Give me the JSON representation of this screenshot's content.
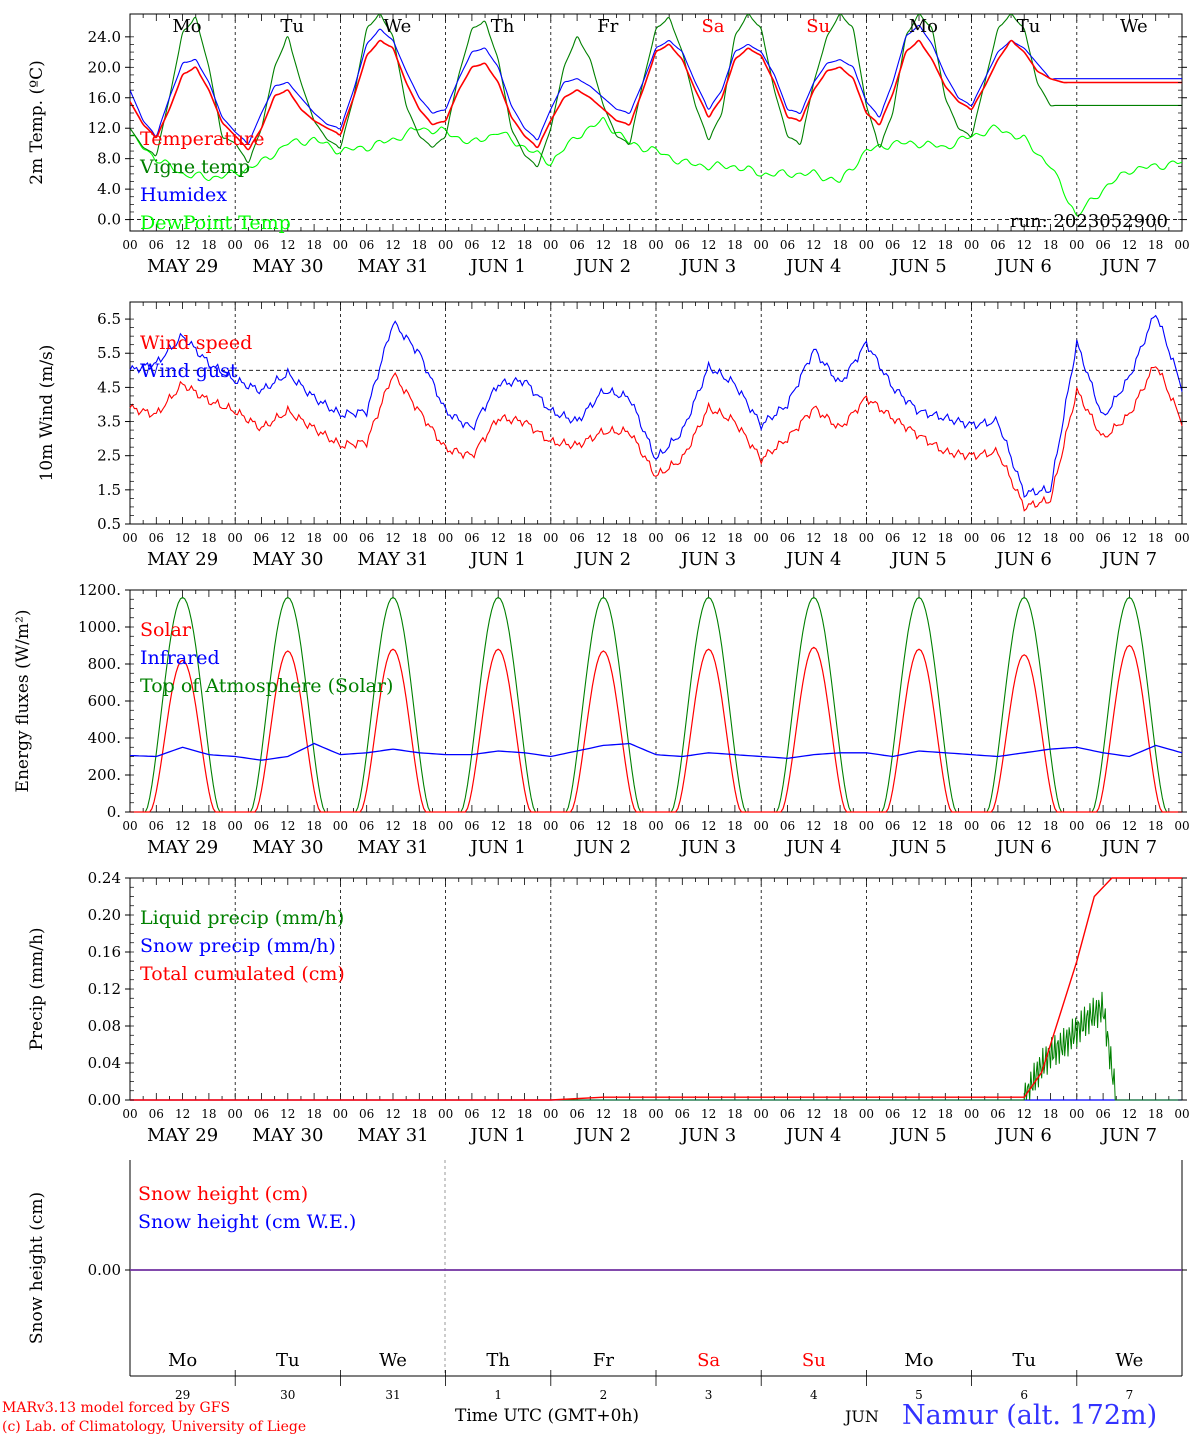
{
  "chart_data": [
    {
      "id": "temperature",
      "type": "line",
      "ylabel": "2m Temp. (ºC)",
      "ylim": [
        -1.5,
        27
      ],
      "yticks": [
        "0.0",
        "4.0",
        "8.0",
        "12.0",
        "16.0",
        "20.0",
        "24.0"
      ],
      "ytick_values": [
        0,
        4,
        8,
        12,
        16,
        20,
        24
      ],
      "ref_line": 0,
      "annotation": "run: 2023052900",
      "x_unit": "hours since MAY 29 00 UTC",
      "series": [
        {
          "name": "Temperature",
          "color": "#ff0000",
          "x": [
            0,
            3,
            6,
            9,
            12,
            15,
            18,
            21,
            24,
            27,
            30,
            33,
            36,
            39,
            42,
            45,
            48,
            51,
            54,
            57,
            60,
            63,
            66,
            69,
            72,
            75,
            78,
            81,
            84,
            87,
            90,
            93,
            96,
            99,
            102,
            105,
            108,
            111,
            114,
            117,
            120,
            123,
            126,
            129,
            132,
            135,
            138,
            141,
            144,
            147,
            150,
            153,
            156,
            159,
            162,
            165,
            168,
            171,
            174,
            177,
            180,
            183,
            186,
            189,
            192,
            195,
            198,
            201,
            204,
            207,
            210,
            213,
            216,
            219,
            222,
            225,
            228,
            231,
            234,
            237,
            240
          ],
          "values": [
            15.5,
            12.5,
            10.8,
            14.5,
            19.0,
            20.0,
            17.0,
            12.8,
            11.0,
            9.2,
            12.0,
            16.2,
            17.0,
            14.5,
            13.0,
            12.0,
            11.2,
            16.0,
            21.5,
            23.5,
            22.5,
            18.0,
            14.5,
            12.5,
            13.0,
            17.0,
            20.0,
            20.5,
            18.0,
            13.5,
            11.0,
            9.5,
            13.0,
            16.0,
            17.0,
            16.0,
            14.5,
            13.0,
            12.5,
            17.0,
            22.0,
            23.0,
            21.0,
            17.0,
            13.5,
            16.0,
            21.0,
            22.5,
            21.5,
            18.0,
            13.5,
            13.0,
            17.0,
            19.5,
            20.0,
            18.5,
            14.0,
            12.5,
            16.5,
            22.0,
            23.5,
            21.0,
            17.5,
            15.5,
            14.5,
            17.5,
            21.0,
            23.5,
            22.0,
            19.5,
            18.5,
            18.0,
            18.0,
            18.0,
            18.0,
            18.0,
            18.0,
            18.0,
            18.0,
            18.0,
            18.0
          ]
        },
        {
          "name": "Vigne temp",
          "color": "#008000",
          "x": [
            0,
            3,
            6,
            9,
            12,
            15,
            18,
            21,
            24,
            27,
            30,
            33,
            36,
            39,
            42,
            45,
            48,
            51,
            54,
            57,
            60,
            63,
            66,
            69,
            72,
            75,
            78,
            81,
            84,
            87,
            90,
            93,
            96,
            99,
            102,
            105,
            108,
            111,
            114,
            117,
            120,
            123,
            126,
            129,
            132,
            135,
            138,
            141,
            144,
            147,
            150,
            153,
            156,
            159,
            162,
            165,
            168,
            171,
            174,
            177,
            180,
            183,
            186,
            189,
            192,
            195,
            198,
            201,
            204,
            207,
            210,
            213,
            216,
            219,
            222,
            225,
            228,
            231,
            234,
            237,
            240
          ],
          "values": [
            12.0,
            9.5,
            8.5,
            16.0,
            24.5,
            26.5,
            20.0,
            11.0,
            10.0,
            7.5,
            12.0,
            20.0,
            24.0,
            18.0,
            13.0,
            10.5,
            9.5,
            16.0,
            25.0,
            27.0,
            24.0,
            15.0,
            11.0,
            9.5,
            11.0,
            19.0,
            25.0,
            26.0,
            21.0,
            12.0,
            8.5,
            7.0,
            12.0,
            20.0,
            24.0,
            21.0,
            15.0,
            11.0,
            10.0,
            18.0,
            25.0,
            26.5,
            22.0,
            15.0,
            10.5,
            14.0,
            24.0,
            27.0,
            25.0,
            17.0,
            11.0,
            10.0,
            18.0,
            24.0,
            27.0,
            25.0,
            15.0,
            9.5,
            14.0,
            24.0,
            27.0,
            25.0,
            16.0,
            12.0,
            11.0,
            18.0,
            25.0,
            27.0,
            25.0,
            18.0,
            15.0,
            15.0,
            15.0,
            15.0,
            15.0,
            15.0,
            15.0,
            15.0,
            15.0,
            15.0,
            15.0
          ]
        },
        {
          "name": "Humidex",
          "color": "#0000ff",
          "x": [
            0,
            3,
            6,
            9,
            12,
            15,
            18,
            21,
            24,
            27,
            30,
            33,
            36,
            39,
            42,
            45,
            48,
            51,
            54,
            57,
            60,
            63,
            66,
            69,
            72,
            75,
            78,
            81,
            84,
            87,
            90,
            93,
            96,
            99,
            102,
            105,
            108,
            111,
            114,
            117,
            120,
            123,
            126,
            129,
            132,
            135,
            138,
            141,
            144,
            147,
            150,
            153,
            156,
            159,
            162,
            165,
            168,
            171,
            174,
            177,
            180,
            183,
            186,
            189,
            192,
            195,
            198,
            201,
            204,
            207,
            210,
            213,
            216,
            219,
            222,
            225,
            228,
            231,
            234,
            237,
            240
          ],
          "values": [
            17.0,
            13.0,
            11.0,
            16.0,
            20.5,
            21.0,
            18.0,
            13.5,
            11.5,
            10.0,
            14.0,
            17.5,
            18.0,
            16.0,
            14.0,
            12.5,
            12.0,
            17.0,
            23.0,
            25.0,
            23.5,
            19.5,
            16.0,
            14.0,
            14.5,
            18.5,
            22.0,
            22.5,
            20.0,
            15.0,
            12.0,
            10.5,
            14.5,
            18.0,
            18.5,
            17.5,
            16.0,
            14.5,
            14.0,
            18.0,
            22.5,
            23.5,
            22.0,
            18.0,
            14.5,
            17.0,
            22.0,
            23.0,
            22.0,
            19.0,
            14.5,
            14.0,
            18.0,
            20.5,
            21.0,
            20.0,
            15.5,
            13.5,
            18.0,
            24.0,
            25.5,
            23.0,
            19.0,
            16.0,
            15.0,
            18.5,
            22.0,
            23.5,
            22.5,
            20.5,
            18.5,
            18.5,
            18.5,
            18.5,
            18.5,
            18.5,
            18.5,
            18.5,
            18.5,
            18.5,
            18.5
          ]
        },
        {
          "name": "DewPoint Temp",
          "color": "#00ff00",
          "x": [
            0,
            6,
            12,
            18,
            24,
            30,
            36,
            42,
            48,
            54,
            60,
            66,
            72,
            78,
            84,
            90,
            96,
            102,
            108,
            114,
            120,
            126,
            132,
            138,
            144,
            150,
            156,
            162,
            168,
            174,
            180,
            186,
            192,
            198,
            204,
            210,
            216,
            222,
            228,
            234,
            240
          ],
          "values": [
            11.0,
            8.0,
            6.0,
            5.5,
            6.0,
            7.5,
            10.0,
            10.5,
            9.0,
            9.5,
            10.5,
            12.0,
            11.5,
            10.0,
            11.5,
            9.5,
            7.5,
            11.0,
            13.0,
            10.0,
            9.0,
            7.5,
            7.0,
            7.0,
            6.0,
            6.0,
            6.0,
            5.0,
            9.0,
            10.0,
            10.0,
            9.5,
            11.0,
            12.0,
            10.5,
            7.0,
            0.5,
            4.0,
            6.5,
            7.0,
            7.5
          ]
        }
      ]
    },
    {
      "id": "wind",
      "type": "line",
      "ylabel": "10m Wind (m/s)",
      "ylim": [
        0.5,
        7.0
      ],
      "yticks": [
        "0.5",
        "1.5",
        "2.5",
        "3.5",
        "4.5",
        "5.5",
        "6.5"
      ],
      "ytick_values": [
        0.5,
        1.5,
        2.5,
        3.5,
        4.5,
        5.5,
        6.5
      ],
      "ref_line": 5.0,
      "series": [
        {
          "name": "Wind speed",
          "color": "#ff0000",
          "x": [
            0,
            6,
            12,
            18,
            24,
            30,
            36,
            42,
            48,
            54,
            60,
            66,
            72,
            78,
            84,
            90,
            96,
            102,
            108,
            114,
            120,
            126,
            132,
            138,
            144,
            150,
            156,
            162,
            168,
            174,
            180,
            186,
            192,
            198,
            204,
            210,
            216,
            222,
            228,
            234,
            240
          ],
          "values": [
            3.9,
            3.7,
            4.6,
            4.1,
            3.8,
            3.3,
            3.8,
            3.3,
            2.8,
            2.9,
            4.9,
            3.8,
            2.7,
            2.5,
            3.6,
            3.5,
            2.9,
            2.8,
            3.2,
            3.2,
            1.9,
            2.4,
            3.9,
            3.5,
            2.4,
            3.0,
            3.9,
            3.3,
            4.2,
            3.6,
            3.1,
            2.6,
            2.5,
            2.6,
            1.0,
            1.2,
            4.4,
            3.0,
            3.7,
            5.2,
            3.5
          ]
        },
        {
          "name": "Wind gust",
          "color": "#0000ff",
          "x": [
            0,
            6,
            12,
            18,
            24,
            30,
            36,
            42,
            48,
            54,
            60,
            66,
            72,
            78,
            84,
            90,
            96,
            102,
            108,
            114,
            120,
            126,
            132,
            138,
            144,
            150,
            156,
            162,
            168,
            174,
            180,
            186,
            192,
            198,
            204,
            210,
            216,
            222,
            228,
            234,
            240
          ],
          "values": [
            5.0,
            5.2,
            6.0,
            5.2,
            4.7,
            4.4,
            4.9,
            4.2,
            3.7,
            3.8,
            6.4,
            5.5,
            3.8,
            3.3,
            4.6,
            4.7,
            3.8,
            3.5,
            4.4,
            4.2,
            2.4,
            3.2,
            5.1,
            4.6,
            3.4,
            4.0,
            5.6,
            4.6,
            5.8,
            4.5,
            3.8,
            3.6,
            3.4,
            3.5,
            1.4,
            1.5,
            5.8,
            3.6,
            4.8,
            6.7,
            4.5
          ]
        }
      ]
    },
    {
      "id": "energy",
      "type": "line",
      "ylabel": "Energy fluxes (W/m²)",
      "ylim": [
        0,
        1200
      ],
      "yticks": [
        "0.",
        "200.",
        "400.",
        "600.",
        "800.",
        "1000.",
        "1200."
      ],
      "ytick_values": [
        0,
        200,
        400,
        600,
        800,
        1000,
        1200
      ],
      "series": [
        {
          "name": "Solar",
          "color": "#ff0000",
          "daily_peaks": [
            820,
            870,
            880,
            880,
            870,
            880,
            890,
            880,
            850,
            900
          ]
        },
        {
          "name": "Infrared",
          "color": "#0000ff",
          "x": [
            0,
            6,
            12,
            18,
            24,
            30,
            36,
            42,
            48,
            54,
            60,
            66,
            72,
            78,
            84,
            90,
            96,
            102,
            108,
            114,
            120,
            126,
            132,
            138,
            144,
            150,
            156,
            162,
            168,
            174,
            180,
            186,
            192,
            198,
            204,
            210,
            216,
            222,
            228,
            234,
            240
          ],
          "values": [
            305,
            300,
            350,
            310,
            300,
            280,
            300,
            370,
            310,
            320,
            340,
            320,
            310,
            310,
            330,
            320,
            300,
            330,
            360,
            370,
            310,
            300,
            320,
            310,
            300,
            290,
            310,
            320,
            320,
            300,
            330,
            320,
            310,
            300,
            320,
            340,
            350,
            320,
            300,
            360,
            320
          ]
        },
        {
          "name": "Top of Atmosphere (Solar)",
          "color": "#008000",
          "daily_peak": 1160
        }
      ]
    },
    {
      "id": "precip",
      "type": "line",
      "ylabel": "Precip (mm/h)",
      "ylim": [
        0,
        0.24
      ],
      "yticks": [
        "0.00",
        "0.04",
        "0.08",
        "0.12",
        "0.16",
        "0.20",
        "0.24"
      ],
      "ytick_values": [
        0,
        0.04,
        0.08,
        0.12,
        0.16,
        0.2,
        0.24
      ],
      "series": [
        {
          "name": "Liquid precip (mm/h)",
          "color": "#008000",
          "x": [
            0,
            204,
            207,
            210,
            213,
            216,
            219,
            222,
            225,
            240
          ],
          "values": [
            0,
            0,
            0.03,
            0.05,
            0.06,
            0.075,
            0.09,
            0.1,
            0,
            0
          ]
        },
        {
          "name": "Snow precip (mm/h)",
          "color": "#0000ff",
          "x": [
            0,
            240
          ],
          "values": [
            0,
            0
          ]
        },
        {
          "name": "Total cumulated (cm)",
          "color": "#ff0000",
          "x": [
            0,
            96,
            108,
            204,
            208,
            212,
            216,
            220,
            224,
            240
          ],
          "values": [
            0,
            0,
            0.003,
            0.003,
            0.03,
            0.09,
            0.15,
            0.22,
            0.24,
            0.24
          ]
        }
      ]
    },
    {
      "id": "snow",
      "type": "line",
      "ylabel": "Snow height (cm)",
      "yticks": [
        "0.00"
      ],
      "ytick_values": [
        0
      ],
      "series": [
        {
          "name": "Snow height (cm)",
          "color": "#ff0000",
          "x": [
            0,
            240
          ],
          "values": [
            0,
            0
          ]
        },
        {
          "name": "Snow height (cm W.E.)",
          "color": "#0000ff",
          "x": [
            0,
            240
          ],
          "values": [
            0,
            0
          ]
        }
      ]
    }
  ],
  "weekday_labels": [
    "Mo",
    "Tu",
    "We",
    "Th",
    "Fr",
    "Sa",
    "Su",
    "Mo",
    "Tu",
    "We"
  ],
  "weekend_color": "#ff0000",
  "date_labels": [
    "MAY 29",
    "MAY 30",
    "MAY 31",
    "JUN  1",
    "JUN  2",
    "JUN  3",
    "JUN  4",
    "JUN  5",
    "JUN  6",
    "JUN  7"
  ],
  "hour_labels": [
    "00",
    "06",
    "12",
    "18"
  ],
  "bottom_day_numbers": [
    "29",
    "30",
    "31",
    "1",
    "2",
    "3",
    "4",
    "5",
    "6",
    "7"
  ],
  "footer": {
    "model_line": "MARv3.13 model forced by GFS",
    "copyright_line": "(c) Lab. of Climatology, University of Liege",
    "xlabel": "Time UTC (GMT+0h)",
    "month": "JUN",
    "station": "Namur (alt. 172m)"
  }
}
